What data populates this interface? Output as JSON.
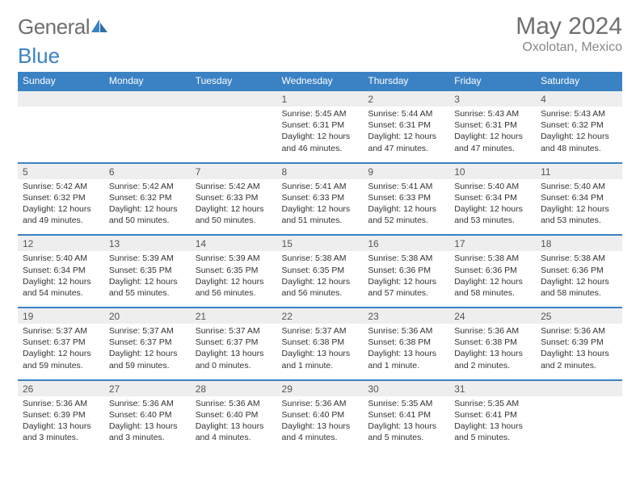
{
  "brand": {
    "part1": "General",
    "part2": "Blue"
  },
  "title": {
    "month": "May 2024",
    "location": "Oxolotan, Mexico"
  },
  "colors": {
    "brand_blue": "#3b82c4",
    "header_blue": "#3b82c4",
    "row_stripe": "#eeeeee",
    "row_divider": "#3b82c4",
    "text": "#333333",
    "muted": "#555555",
    "subtitle": "#888888",
    "background": "#ffffff"
  },
  "calendar": {
    "weekdays": [
      "Sunday",
      "Monday",
      "Tuesday",
      "Wednesday",
      "Thursday",
      "Friday",
      "Saturday"
    ],
    "column_count": 7,
    "row_count": 5,
    "first_weekday_index": 3,
    "days": [
      {
        "n": 1,
        "sunrise": "5:45 AM",
        "sunset": "6:31 PM",
        "daylight": "12 hours and 46 minutes."
      },
      {
        "n": 2,
        "sunrise": "5:44 AM",
        "sunset": "6:31 PM",
        "daylight": "12 hours and 47 minutes."
      },
      {
        "n": 3,
        "sunrise": "5:43 AM",
        "sunset": "6:31 PM",
        "daylight": "12 hours and 47 minutes."
      },
      {
        "n": 4,
        "sunrise": "5:43 AM",
        "sunset": "6:32 PM",
        "daylight": "12 hours and 48 minutes."
      },
      {
        "n": 5,
        "sunrise": "5:42 AM",
        "sunset": "6:32 PM",
        "daylight": "12 hours and 49 minutes."
      },
      {
        "n": 6,
        "sunrise": "5:42 AM",
        "sunset": "6:32 PM",
        "daylight": "12 hours and 50 minutes."
      },
      {
        "n": 7,
        "sunrise": "5:42 AM",
        "sunset": "6:33 PM",
        "daylight": "12 hours and 50 minutes."
      },
      {
        "n": 8,
        "sunrise": "5:41 AM",
        "sunset": "6:33 PM",
        "daylight": "12 hours and 51 minutes."
      },
      {
        "n": 9,
        "sunrise": "5:41 AM",
        "sunset": "6:33 PM",
        "daylight": "12 hours and 52 minutes."
      },
      {
        "n": 10,
        "sunrise": "5:40 AM",
        "sunset": "6:34 PM",
        "daylight": "12 hours and 53 minutes."
      },
      {
        "n": 11,
        "sunrise": "5:40 AM",
        "sunset": "6:34 PM",
        "daylight": "12 hours and 53 minutes."
      },
      {
        "n": 12,
        "sunrise": "5:40 AM",
        "sunset": "6:34 PM",
        "daylight": "12 hours and 54 minutes."
      },
      {
        "n": 13,
        "sunrise": "5:39 AM",
        "sunset": "6:35 PM",
        "daylight": "12 hours and 55 minutes."
      },
      {
        "n": 14,
        "sunrise": "5:39 AM",
        "sunset": "6:35 PM",
        "daylight": "12 hours and 56 minutes."
      },
      {
        "n": 15,
        "sunrise": "5:38 AM",
        "sunset": "6:35 PM",
        "daylight": "12 hours and 56 minutes."
      },
      {
        "n": 16,
        "sunrise": "5:38 AM",
        "sunset": "6:36 PM",
        "daylight": "12 hours and 57 minutes."
      },
      {
        "n": 17,
        "sunrise": "5:38 AM",
        "sunset": "6:36 PM",
        "daylight": "12 hours and 58 minutes."
      },
      {
        "n": 18,
        "sunrise": "5:38 AM",
        "sunset": "6:36 PM",
        "daylight": "12 hours and 58 minutes."
      },
      {
        "n": 19,
        "sunrise": "5:37 AM",
        "sunset": "6:37 PM",
        "daylight": "12 hours and 59 minutes."
      },
      {
        "n": 20,
        "sunrise": "5:37 AM",
        "sunset": "6:37 PM",
        "daylight": "12 hours and 59 minutes."
      },
      {
        "n": 21,
        "sunrise": "5:37 AM",
        "sunset": "6:37 PM",
        "daylight": "13 hours and 0 minutes."
      },
      {
        "n": 22,
        "sunrise": "5:37 AM",
        "sunset": "6:38 PM",
        "daylight": "13 hours and 1 minute."
      },
      {
        "n": 23,
        "sunrise": "5:36 AM",
        "sunset": "6:38 PM",
        "daylight": "13 hours and 1 minute."
      },
      {
        "n": 24,
        "sunrise": "5:36 AM",
        "sunset": "6:38 PM",
        "daylight": "13 hours and 2 minutes."
      },
      {
        "n": 25,
        "sunrise": "5:36 AM",
        "sunset": "6:39 PM",
        "daylight": "13 hours and 2 minutes."
      },
      {
        "n": 26,
        "sunrise": "5:36 AM",
        "sunset": "6:39 PM",
        "daylight": "13 hours and 3 minutes."
      },
      {
        "n": 27,
        "sunrise": "5:36 AM",
        "sunset": "6:40 PM",
        "daylight": "13 hours and 3 minutes."
      },
      {
        "n": 28,
        "sunrise": "5:36 AM",
        "sunset": "6:40 PM",
        "daylight": "13 hours and 4 minutes."
      },
      {
        "n": 29,
        "sunrise": "5:36 AM",
        "sunset": "6:40 PM",
        "daylight": "13 hours and 4 minutes."
      },
      {
        "n": 30,
        "sunrise": "5:35 AM",
        "sunset": "6:41 PM",
        "daylight": "13 hours and 5 minutes."
      },
      {
        "n": 31,
        "sunrise": "5:35 AM",
        "sunset": "6:41 PM",
        "daylight": "13 hours and 5 minutes."
      }
    ],
    "labels": {
      "sunrise": "Sunrise:",
      "sunset": "Sunset:",
      "daylight": "Daylight:"
    }
  },
  "typography": {
    "month_fontsize": 30,
    "location_fontsize": 16,
    "weekday_fontsize": 12,
    "daynum_fontsize": 12,
    "body_fontsize": 10.5,
    "font_family": "Arial"
  }
}
